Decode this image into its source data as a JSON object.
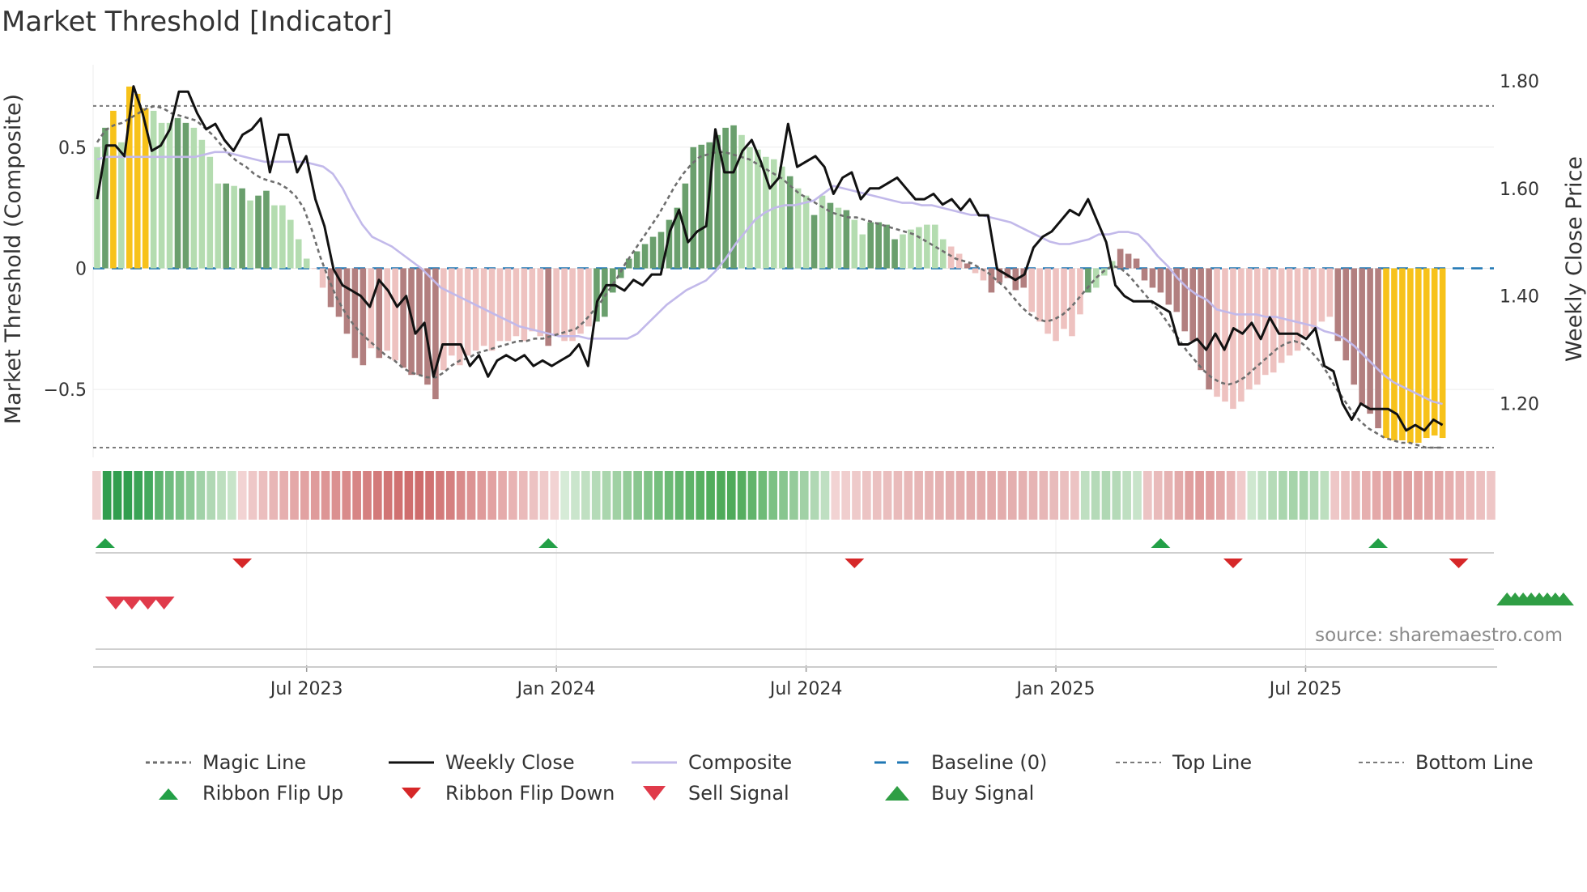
{
  "chart_data": {
    "type": "bar",
    "title": "Market Threshold [Indicator]",
    "ylabel_left": "Market Threshold (Composite)",
    "ylabel_right": "Weekly Close Price",
    "source": "source: sharemaestro.com",
    "ylim_left": [
      -0.78,
      0.84
    ],
    "ylim_right": [
      1.1,
      1.83
    ],
    "yticks_left": [
      {
        "value": 0.5,
        "label": "0.5"
      },
      {
        "value": 0,
        "label": "0"
      },
      {
        "value": -0.5,
        "label": "−0.5"
      }
    ],
    "yticks_right": [
      {
        "value": 1.8,
        "label": "1.80"
      },
      {
        "value": 1.6,
        "label": "1.60"
      },
      {
        "value": 1.4,
        "label": "1.40"
      },
      {
        "value": 1.2,
        "label": "1.20"
      }
    ],
    "xticks": [
      {
        "index": 26,
        "label": "Jul 2023"
      },
      {
        "index": 57,
        "label": "Jan 2024"
      },
      {
        "index": 88,
        "label": "Jul 2024"
      },
      {
        "index": 119,
        "label": "Jan 2025"
      },
      {
        "index": 150,
        "label": "Jul 2025"
      }
    ],
    "top_line": 0.67,
    "bottom_line": -0.74,
    "composite": [
      0.5,
      0.58,
      0.65,
      0.52,
      0.75,
      0.72,
      0.66,
      0.65,
      0.6,
      0.6,
      0.62,
      0.6,
      0.58,
      0.53,
      0.46,
      0.35,
      0.35,
      0.34,
      0.33,
      0.28,
      0.3,
      0.32,
      0.26,
      0.26,
      0.2,
      0.12,
      0.04,
      0.0,
      -0.08,
      -0.16,
      -0.2,
      -0.27,
      -0.37,
      -0.4,
      -0.33,
      -0.37,
      -0.34,
      -0.38,
      -0.41,
      -0.44,
      -0.44,
      -0.48,
      -0.54,
      -0.42,
      -0.36,
      -0.4,
      -0.36,
      -0.34,
      -0.32,
      -0.34,
      -0.3,
      -0.3,
      -0.28,
      -0.3,
      -0.26,
      -0.28,
      -0.32,
      -0.28,
      -0.3,
      -0.3,
      -0.27,
      -0.24,
      -0.22,
      -0.2,
      -0.1,
      -0.04,
      0.04,
      0.07,
      0.1,
      0.13,
      0.15,
      0.2,
      0.25,
      0.35,
      0.5,
      0.51,
      0.52,
      0.55,
      0.58,
      0.59,
      0.55,
      0.5,
      0.49,
      0.46,
      0.45,
      0.42,
      0.38,
      0.33,
      0.3,
      0.22,
      0.3,
      0.27,
      0.25,
      0.24,
      0.2,
      0.14,
      0.19,
      0.19,
      0.18,
      0.12,
      0.14,
      0.16,
      0.17,
      0.18,
      0.18,
      0.12,
      0.09,
      0.06,
      0.02,
      -0.02,
      -0.05,
      -0.1,
      -0.06,
      -0.04,
      -0.09,
      -0.08,
      -0.18,
      -0.22,
      -0.27,
      -0.3,
      -0.25,
      -0.28,
      -0.19,
      -0.1,
      -0.08,
      -0.03,
      0.03,
      0.08,
      0.06,
      0.04,
      -0.05,
      -0.08,
      -0.1,
      -0.15,
      -0.18,
      -0.26,
      -0.3,
      -0.42,
      -0.5,
      -0.53,
      -0.55,
      -0.58,
      -0.55,
      -0.5,
      -0.48,
      -0.44,
      -0.43,
      -0.39,
      -0.36,
      -0.34,
      -0.28,
      -0.25,
      -0.22,
      -0.2,
      -0.3,
      -0.38,
      -0.48,
      -0.56,
      -0.6,
      -0.66,
      -0.7,
      -0.71,
      -0.71,
      -0.72,
      -0.72,
      -0.7,
      -0.69,
      -0.7
    ],
    "bar_kind": [
      "lg",
      "dg",
      "gold",
      "lg",
      "gold",
      "gold",
      "gold",
      "lg",
      "lg",
      "lg",
      "dg",
      "dg",
      "lg",
      "lg",
      "lg",
      "lg",
      "dg",
      "lg",
      "dg",
      "lg",
      "dg",
      "dg",
      "lg",
      "lg",
      "lg",
      "lg",
      "lg",
      "lr",
      "lr",
      "dr",
      "dr",
      "dr",
      "dr",
      "dr",
      "lr",
      "dr",
      "lr",
      "lr",
      "dr",
      "dr",
      "dr",
      "dr",
      "dr",
      "lr",
      "lr",
      "lr",
      "lr",
      "lr",
      "lr",
      "lr",
      "lr",
      "lr",
      "lr",
      "lr",
      "lr",
      "lr",
      "dr",
      "lr",
      "lr",
      "lr",
      "lr",
      "lr",
      "dg",
      "dg",
      "dg",
      "dg",
      "dg",
      "dg",
      "dg",
      "dg",
      "dg",
      "dg",
      "dg",
      "dg",
      "dg",
      "dg",
      "dg",
      "dg",
      "dg",
      "dg",
      "lg",
      "lg",
      "lg",
      "lg",
      "lg",
      "lg",
      "dg",
      "lg",
      "lg",
      "dg",
      "lg",
      "dg",
      "lg",
      "dg",
      "lg",
      "lg",
      "dg",
      "dg",
      "dg",
      "dg",
      "lg",
      "lg",
      "lg",
      "lg",
      "lg",
      "lg",
      "lr",
      "lr",
      "dr",
      "lr",
      "lr",
      "dr",
      "dr",
      "dr",
      "dr",
      "dr",
      "lr",
      "lr",
      "lr",
      "lr",
      "lr",
      "lr",
      "lr",
      "dg",
      "lg",
      "lg",
      "lg",
      "dr",
      "dr",
      "dr",
      "dr",
      "dr",
      "dr",
      "dr",
      "dr",
      "dr",
      "dr",
      "dr",
      "dr",
      "lr",
      "lr",
      "lr",
      "lr",
      "lr",
      "lr",
      "lr",
      "lr",
      "lr",
      "lr",
      "lr",
      "lr",
      "lr",
      "lr",
      "lr",
      "dr",
      "dr",
      "dr",
      "dr",
      "dr",
      "dr",
      "gold",
      "gold",
      "gold",
      "gold",
      "gold",
      "gold",
      "gold",
      "gold",
      "gold",
      "lr"
    ],
    "magic_line": [
      0.52,
      0.57,
      0.59,
      0.6,
      0.62,
      0.64,
      0.66,
      0.67,
      0.66,
      0.64,
      0.63,
      0.62,
      0.61,
      0.58,
      0.55,
      0.51,
      0.47,
      0.44,
      0.42,
      0.39,
      0.37,
      0.36,
      0.35,
      0.33,
      0.3,
      0.25,
      0.16,
      0.05,
      -0.04,
      -0.12,
      -0.18,
      -0.23,
      -0.27,
      -0.3,
      -0.33,
      -0.36,
      -0.38,
      -0.41,
      -0.43,
      -0.44,
      -0.45,
      -0.45,
      -0.43,
      -0.4,
      -0.38,
      -0.37,
      -0.35,
      -0.34,
      -0.33,
      -0.32,
      -0.31,
      -0.3,
      -0.3,
      -0.29,
      -0.29,
      -0.28,
      -0.27,
      -0.26,
      -0.25,
      -0.22,
      -0.18,
      -0.14,
      -0.09,
      -0.04,
      0.02,
      0.07,
      0.12,
      0.17,
      0.22,
      0.28,
      0.34,
      0.39,
      0.43,
      0.46,
      0.47,
      0.48,
      0.48,
      0.47,
      0.46,
      0.45,
      0.43,
      0.41,
      0.39,
      0.37,
      0.34,
      0.31,
      0.29,
      0.27,
      0.25,
      0.23,
      0.22,
      0.21,
      0.21,
      0.2,
      0.19,
      0.18,
      0.17,
      0.16,
      0.15,
      0.14,
      0.12,
      0.1,
      0.08,
      0.06,
      0.04,
      0.03,
      0.02,
      0.0,
      -0.02,
      -0.05,
      -0.08,
      -0.12,
      -0.16,
      -0.19,
      -0.21,
      -0.22,
      -0.21,
      -0.19,
      -0.16,
      -0.12,
      -0.08,
      -0.04,
      -0.01,
      0.01,
      0.0,
      -0.03,
      -0.07,
      -0.11,
      -0.15,
      -0.19,
      -0.24,
      -0.29,
      -0.34,
      -0.38,
      -0.42,
      -0.45,
      -0.47,
      -0.48,
      -0.47,
      -0.45,
      -0.42,
      -0.39,
      -0.36,
      -0.33,
      -0.31,
      -0.3,
      -0.31,
      -0.34,
      -0.38,
      -0.43,
      -0.49,
      -0.54,
      -0.59,
      -0.63,
      -0.66,
      -0.68,
      -0.7,
      -0.71,
      -0.72,
      -0.72,
      -0.73,
      -0.74,
      -0.74,
      -0.74
    ],
    "weekly_close": [
      1.58,
      1.68,
      1.68,
      1.66,
      1.79,
      1.74,
      1.67,
      1.68,
      1.71,
      1.78,
      1.78,
      1.74,
      1.71,
      1.72,
      1.69,
      1.67,
      1.7,
      1.71,
      1.73,
      1.63,
      1.7,
      1.7,
      1.63,
      1.66,
      1.58,
      1.53,
      1.45,
      1.42,
      1.41,
      1.4,
      1.38,
      1.43,
      1.41,
      1.38,
      1.4,
      1.33,
      1.35,
      1.25,
      1.31,
      1.31,
      1.31,
      1.27,
      1.29,
      1.25,
      1.28,
      1.29,
      1.28,
      1.29,
      1.27,
      1.28,
      1.27,
      1.28,
      1.29,
      1.31,
      1.27,
      1.39,
      1.42,
      1.42,
      1.41,
      1.43,
      1.42,
      1.44,
      1.44,
      1.52,
      1.56,
      1.5,
      1.52,
      1.53,
      1.71,
      1.63,
      1.63,
      1.67,
      1.69,
      1.65,
      1.6,
      1.62,
      1.72,
      1.64,
      1.65,
      1.66,
      1.64,
      1.59,
      1.62,
      1.63,
      1.58,
      1.6,
      1.6,
      1.61,
      1.62,
      1.6,
      1.58,
      1.58,
      1.59,
      1.57,
      1.58,
      1.56,
      1.58,
      1.55,
      1.55,
      1.45,
      1.44,
      1.43,
      1.44,
      1.49,
      1.51,
      1.52,
      1.54,
      1.56,
      1.55,
      1.58,
      1.54,
      1.5,
      1.42,
      1.4,
      1.39,
      1.39,
      1.39,
      1.38,
      1.37,
      1.31,
      1.31,
      1.32,
      1.3,
      1.33,
      1.3,
      1.34,
      1.33,
      1.35,
      1.32,
      1.36,
      1.33,
      1.33,
      1.33,
      1.32,
      1.34,
      1.27,
      1.26,
      1.2,
      1.17,
      1.2,
      1.19,
      1.19,
      1.19,
      1.18,
      1.15,
      1.16,
      1.15,
      1.17,
      1.16
    ],
    "composite_smooth": [
      0.45,
      0.46,
      0.46,
      0.46,
      0.46,
      0.46,
      0.46,
      0.46,
      0.46,
      0.46,
      0.46,
      0.47,
      0.48,
      0.48,
      0.47,
      0.46,
      0.45,
      0.44,
      0.44,
      0.44,
      0.44,
      0.44,
      0.43,
      0.42,
      0.39,
      0.33,
      0.25,
      0.18,
      0.13,
      0.11,
      0.09,
      0.06,
      0.03,
      0.0,
      -0.04,
      -0.08,
      -0.1,
      -0.12,
      -0.14,
      -0.16,
      -0.18,
      -0.2,
      -0.22,
      -0.24,
      -0.25,
      -0.26,
      -0.27,
      -0.28,
      -0.28,
      -0.28,
      -0.29,
      -0.29,
      -0.29,
      -0.29,
      -0.29,
      -0.27,
      -0.23,
      -0.19,
      -0.15,
      -0.12,
      -0.09,
      -0.07,
      -0.05,
      -0.01,
      0.04,
      0.1,
      0.15,
      0.2,
      0.23,
      0.25,
      0.26,
      0.26,
      0.27,
      0.28,
      0.31,
      0.34,
      0.33,
      0.32,
      0.31,
      0.3,
      0.29,
      0.28,
      0.27,
      0.27,
      0.26,
      0.26,
      0.25,
      0.24,
      0.23,
      0.22,
      0.22,
      0.21,
      0.2,
      0.19,
      0.17,
      0.15,
      0.13,
      0.11,
      0.1,
      0.1,
      0.11,
      0.12,
      0.14,
      0.14,
      0.15,
      0.15,
      0.14,
      0.1,
      0.05,
      0.01,
      -0.04,
      -0.08,
      -0.11,
      -0.13,
      -0.17,
      -0.18,
      -0.19,
      -0.19,
      -0.19,
      -0.2,
      -0.2,
      -0.21,
      -0.22,
      -0.23,
      -0.24,
      -0.26,
      -0.27,
      -0.29,
      -0.32,
      -0.36,
      -0.4,
      -0.44,
      -0.47,
      -0.49,
      -0.51,
      -0.53,
      -0.55,
      -0.56
    ],
    "ribbon_colors": [
      "#f1d2d2",
      "#319e4f",
      "#319e4f",
      "#319e4f",
      "#3aa356",
      "#44a95e",
      "#5db46f",
      "#6fbc7f",
      "#7cc288",
      "#8fca98",
      "#a1d2a8",
      "#b0d8b4",
      "#bddfbf",
      "#c8e4c9",
      "#f2d3d3",
      "#eec7c7",
      "#ebbebe",
      "#e8b6b6",
      "#e6afaf",
      "#e4a8a8",
      "#e2a2a2",
      "#df9b9b",
      "#dd9595",
      "#db9090",
      "#d98b8b",
      "#d78585",
      "#d58080",
      "#d37a7a",
      "#d17575",
      "#d07171",
      "#cf6e6e",
      "#ce6c6c",
      "#d07272",
      "#d37a7a",
      "#d58080",
      "#d98b8b",
      "#dc9393",
      "#df9b9b",
      "#e2a2a2",
      "#e5abab",
      "#e8b3b3",
      "#eababa",
      "#ecc2c2",
      "#efcaca",
      "#f2d3d3",
      "#d6ebd7",
      "#cae5cc",
      "#c0e0c2",
      "#b5dbb8",
      "#aad6ae",
      "#a0d1a4",
      "#94cb99",
      "#8ac690",
      "#80c287",
      "#76bf7e",
      "#6cba75",
      "#64b66e",
      "#5eb368",
      "#58b062",
      "#52ad5d",
      "#4fab5a",
      "#4fab5a",
      "#56ae60",
      "#62b46b",
      "#6fbb77",
      "#7cc184",
      "#88c68f",
      "#95cb9b",
      "#a1d1a6",
      "#b0d8b4",
      "#bfdfc2",
      "#f2d3d3",
      "#f0cece",
      "#eecaca",
      "#ecc4c4",
      "#ebc1c1",
      "#eabebe",
      "#e9bbbb",
      "#e8b8b8",
      "#e7b6b6",
      "#e6b4b4",
      "#e5b2b2",
      "#e4b0b0",
      "#e4aeae",
      "#e3adad",
      "#e3acac",
      "#e3acac",
      "#e3adad",
      "#e4afaf",
      "#e5b1b1",
      "#e6b4b4",
      "#e7b7b7",
      "#e8bbbb",
      "#eabfbf",
      "#ecc3c3",
      "#bfdfc1",
      "#b5dab8",
      "#b0d8b4",
      "#b5dab8",
      "#bfdfc1",
      "#c8e4ca",
      "#ecc4c4",
      "#e9bbbb",
      "#e6b3b3",
      "#e3aaaa",
      "#e09f9f",
      "#df9b9b",
      "#e09f9f",
      "#e3a9a9",
      "#e8b5b5",
      "#f0cccc",
      "#cfe8d0",
      "#c2e1c4",
      "#b5dbb8",
      "#aad6ae",
      "#a6d4aa",
      "#a8d5ac",
      "#b0d8b4",
      "#bddfbf",
      "#eec7c7",
      "#ebbfbf",
      "#e8b6b6",
      "#e6afaf",
      "#e4a9a9",
      "#e2a4a4",
      "#e1a1a1",
      "#e0a0a0",
      "#e1a2a2",
      "#e2a5a5",
      "#e4a9a9",
      "#e6aeae",
      "#e8b4b4",
      "#eababa",
      "#ecc0c0",
      "#eec6c6"
    ],
    "flip_up_idx": [
      1,
      56,
      132,
      159
    ],
    "flip_down_idx": [
      18,
      94,
      141,
      169
    ],
    "sell_idx": [
      2,
      4,
      6,
      8
    ],
    "buy_idx": [
      175,
      176,
      177,
      178,
      179,
      180,
      181,
      182
    ],
    "colors": {
      "dark_green": "#6a9f6d",
      "light_green": "#b4dcb0",
      "dark_red": "#b27f7f",
      "light_red": "#eec2c0",
      "gold": "#f7c21a",
      "magic": "#6e6e6e",
      "close": "#111111",
      "composite": "#c2b9ea",
      "baseline": "#1f77b4",
      "flip_up": "#23a047",
      "flip_down": "#d62728",
      "sell": "#e03a4a",
      "buy": "#2f9e44"
    },
    "legend": [
      {
        "label": "Magic Line"
      },
      {
        "label": "Weekly Close"
      },
      {
        "label": "Composite"
      },
      {
        "label": "Baseline (0)"
      },
      {
        "label": "Top Line"
      },
      {
        "label": "Bottom Line"
      },
      {
        "label": "Ribbon Flip Up"
      },
      {
        "label": "Ribbon Flip Down"
      },
      {
        "label": "Sell Signal"
      },
      {
        "label": "Buy Signal"
      }
    ]
  }
}
